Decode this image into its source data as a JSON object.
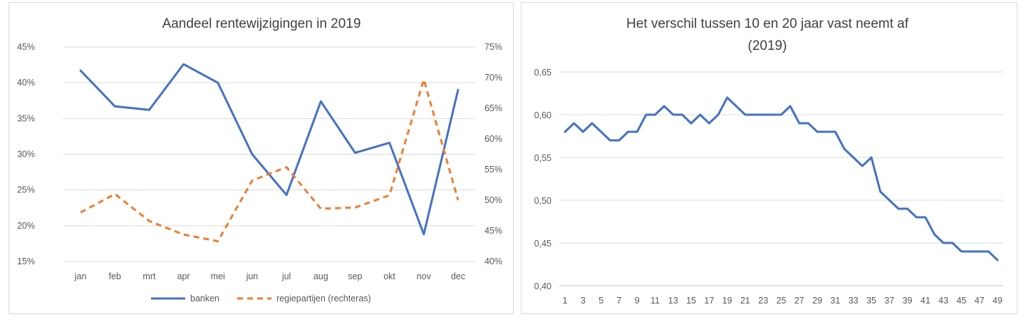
{
  "charts": [
    {
      "type": "line",
      "title": "Aandeel rentewijzigingen in 2019",
      "categories": [
        "jan",
        "feb",
        "mrt",
        "apr",
        "mei",
        "jun",
        "jul",
        "aug",
        "sep",
        "okt",
        "nov",
        "dec"
      ],
      "y_left": {
        "ticks": [
          "15%",
          "20%",
          "25%",
          "30%",
          "35%",
          "40%",
          "45%"
        ],
        "range": [
          0.15,
          0.45
        ]
      },
      "y_right": {
        "ticks": [
          "40%",
          "45%",
          "50%",
          "55%",
          "60%",
          "65%",
          "70%",
          "75%"
        ],
        "range": [
          0.4,
          0.75
        ]
      },
      "grid": true,
      "legend_position": "bottom",
      "series": [
        {
          "name": "banken",
          "axis": "left",
          "color": "#4472C4",
          "dash": "solid",
          "values": [
            0.417,
            0.367,
            0.362,
            0.426,
            0.4,
            0.3,
            0.243,
            0.374,
            0.302,
            0.316,
            0.188,
            0.39
          ]
        },
        {
          "name": "regiepartijen (rechteras)",
          "axis": "right",
          "color": "#ED7D31",
          "dash": "dashed",
          "values": [
            0.48,
            0.51,
            0.466,
            0.444,
            0.433,
            0.532,
            0.554,
            0.486,
            0.488,
            0.508,
            0.697,
            0.5
          ]
        }
      ]
    },
    {
      "type": "line",
      "title_lines": [
        "Het verschil tussen 10 en 20 jaar vast neemt af",
        "(2019)"
      ],
      "x": {
        "min": 1,
        "max": 49,
        "tick_labels": [
          "1",
          "3",
          "5",
          "7",
          "9",
          "11",
          "13",
          "15",
          "17",
          "19",
          "21",
          "23",
          "25",
          "27",
          "29",
          "31",
          "33",
          "35",
          "37",
          "39",
          "41",
          "43",
          "45",
          "47",
          "49"
        ]
      },
      "y": {
        "ticks": [
          "0,40",
          "0,45",
          "0,50",
          "0,55",
          "0,60",
          "0,65"
        ],
        "range": [
          0.4,
          0.65
        ]
      },
      "grid": true,
      "series": [
        {
          "color": "#4472C4",
          "values": [
            0.58,
            0.59,
            0.58,
            0.59,
            0.58,
            0.57,
            0.57,
            0.58,
            0.58,
            0.6,
            0.6,
            0.61,
            0.6,
            0.6,
            0.59,
            0.6,
            0.59,
            0.6,
            0.62,
            0.61,
            0.6,
            0.6,
            0.6,
            0.6,
            0.6,
            0.61,
            0.59,
            0.59,
            0.58,
            0.58,
            0.58,
            0.56,
            0.55,
            0.54,
            0.55,
            0.51,
            0.5,
            0.49,
            0.49,
            0.48,
            0.48,
            0.46,
            0.45,
            0.45,
            0.44,
            0.44,
            0.44,
            0.44,
            0.43
          ]
        }
      ]
    }
  ]
}
